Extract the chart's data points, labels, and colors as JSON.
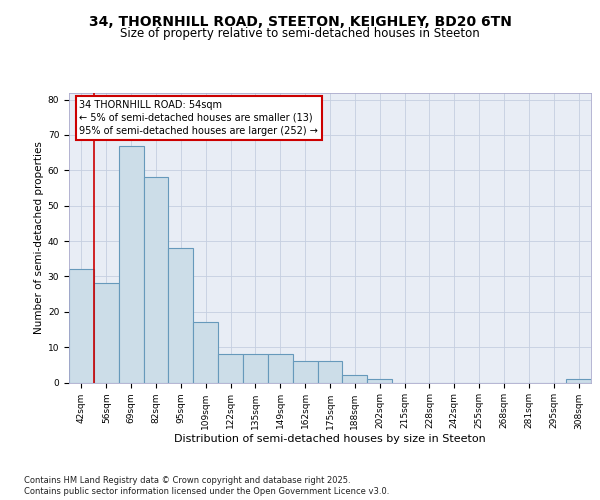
{
  "title_line1": "34, THORNHILL ROAD, STEETON, KEIGHLEY, BD20 6TN",
  "title_line2": "Size of property relative to semi-detached houses in Steeton",
  "xlabel": "Distribution of semi-detached houses by size in Steeton",
  "ylabel": "Number of semi-detached properties",
  "categories": [
    "42sqm",
    "56sqm",
    "69sqm",
    "82sqm",
    "95sqm",
    "109sqm",
    "122sqm",
    "135sqm",
    "149sqm",
    "162sqm",
    "175sqm",
    "188sqm",
    "202sqm",
    "215sqm",
    "228sqm",
    "242sqm",
    "255sqm",
    "268sqm",
    "281sqm",
    "295sqm",
    "308sqm"
  ],
  "values": [
    32,
    28,
    67,
    58,
    38,
    17,
    8,
    8,
    8,
    6,
    6,
    2,
    1,
    0,
    0,
    0,
    0,
    0,
    0,
    0,
    1
  ],
  "bar_color": "#ccdde8",
  "bar_edge_color": "#6699bb",
  "bar_edge_width": 0.8,
  "grid_color": "#c5cfe0",
  "background_color": "#e8edf5",
  "red_line_x": 0.5,
  "annotation_title": "34 THORNHILL ROAD: 54sqm",
  "annotation_line1": "← 5% of semi-detached houses are smaller (13)",
  "annotation_line2": "95% of semi-detached houses are larger (252) →",
  "annotation_box_facecolor": "#ffffff",
  "annotation_box_edgecolor": "#cc0000",
  "red_line_color": "#cc0000",
  "ylim": [
    0,
    82
  ],
  "yticks": [
    0,
    10,
    20,
    30,
    40,
    50,
    60,
    70,
    80
  ],
  "footnote1": "Contains HM Land Registry data © Crown copyright and database right 2025.",
  "footnote2": "Contains public sector information licensed under the Open Government Licence v3.0.",
  "title_fontsize": 10,
  "subtitle_fontsize": 8.5,
  "xlabel_fontsize": 8,
  "ylabel_fontsize": 7.5,
  "tick_fontsize": 6.5,
  "annotation_fontsize": 7,
  "footnote_fontsize": 6
}
